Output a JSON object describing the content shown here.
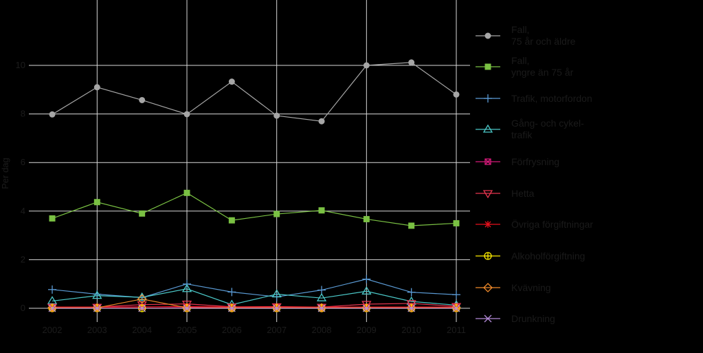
{
  "chart_data": {
    "type": "line",
    "title": "",
    "xlabel": "",
    "ylabel": "Per dag",
    "x": [
      "2002",
      "2003",
      "2004",
      "2005",
      "2006",
      "2007",
      "2008",
      "2009",
      "2010",
      "2011"
    ],
    "ylim": [
      0,
      12
    ],
    "yticks": [
      0,
      2,
      4,
      6,
      8,
      10
    ],
    "grid": true,
    "legend_position": "right",
    "series": [
      {
        "name": "Fall, 75 år och äldre",
        "legend_lines": [
          "Fall,",
          "75 år och äldre"
        ],
        "color": "#a6a6a6",
        "marker": "circle",
        "values": [
          7.98,
          9.1,
          8.57,
          7.99,
          9.33,
          7.93,
          7.7,
          10.0,
          10.12,
          8.8
        ]
      },
      {
        "name": "Fall, yngre än 75 år",
        "legend_lines": [
          "Fall,",
          "yngre än 75 år"
        ],
        "color": "#7ac143",
        "marker": "square",
        "values": [
          3.7,
          4.37,
          3.9,
          4.75,
          3.62,
          3.88,
          4.03,
          3.67,
          3.4,
          3.5
        ]
      },
      {
        "name": "Trafik, motorfordon",
        "legend_lines": [
          "Trafik, motorfordon"
        ],
        "color": "#5b9bd5",
        "marker": "plus",
        "values": [
          0.77,
          0.58,
          0.44,
          1.0,
          0.67,
          0.47,
          0.75,
          1.2,
          0.66,
          0.56
        ]
      },
      {
        "name": "Gång- och cykeltrafik",
        "legend_lines": [
          "Gång- och cykel-",
          "trafik"
        ],
        "color": "#4bc8c8",
        "marker": "triangle",
        "values": [
          0.3,
          0.52,
          0.45,
          0.8,
          0.15,
          0.58,
          0.42,
          0.7,
          0.28,
          0.13
        ]
      },
      {
        "name": "Förfrysning",
        "legend_lines": [
          "Förfrysning"
        ],
        "color": "#d6197a",
        "marker": "square-x",
        "values": [
          0.05,
          0.05,
          0.06,
          0.05,
          0.05,
          0.05,
          0.05,
          0.05,
          0.05,
          0.05
        ]
      },
      {
        "name": "Hetta",
        "legend_lines": [
          "Hetta"
        ],
        "color": "#e8354f",
        "marker": "triangle-down",
        "values": [
          0.05,
          0.05,
          0.15,
          0.18,
          0.06,
          0.07,
          0.05,
          0.17,
          0.2,
          0.08
        ]
      },
      {
        "name": "Övriga förgiftningar",
        "legend_lines": [
          "Övriga förgiftningar"
        ],
        "color": "#e8101c",
        "marker": "asterisk",
        "values": [
          0.05,
          0.05,
          0.05,
          0.08,
          0.05,
          0.05,
          0.05,
          0.05,
          0.05,
          0.05
        ]
      },
      {
        "name": "Alkoholförgiftning",
        "legend_lines": [
          "Alkoholförgiftning"
        ],
        "color": "#ffee00",
        "marker": "circle-plus",
        "values": [
          0.0,
          0.0,
          0.0,
          0.0,
          0.0,
          0.0,
          0.0,
          0.0,
          0.0,
          0.0
        ]
      },
      {
        "name": "Kvävning",
        "legend_lines": [
          "Kvävning"
        ],
        "color": "#f08a2a",
        "marker": "diamond",
        "values": [
          0.02,
          0.02,
          0.38,
          0.02,
          0.02,
          0.02,
          0.02,
          0.02,
          0.02,
          0.02
        ]
      },
      {
        "name": "Drunkning",
        "legend_lines": [
          "Drunkning"
        ],
        "color": "#b48ad8",
        "marker": "x",
        "values": [
          0.0,
          0.0,
          0.0,
          0.0,
          0.0,
          0.0,
          0.0,
          0.0,
          0.0,
          0.0
        ]
      }
    ]
  }
}
